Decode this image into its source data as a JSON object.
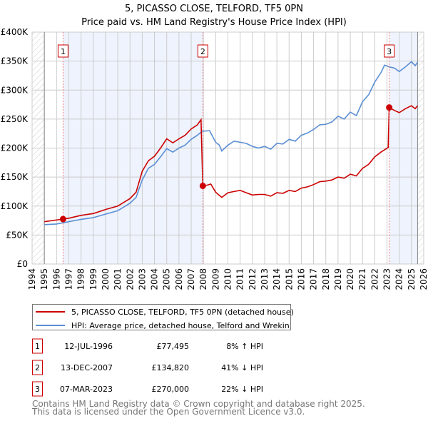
{
  "chart_data": {
    "type": "line",
    "title": "5, PICASSO CLOSE, TELFORD, TF5 0PN",
    "subtitle": "Price paid vs. HM Land Registry's House Price Index (HPI)",
    "xlim": [
      1994,
      2026
    ],
    "ylim": [
      0,
      400000
    ],
    "y_ticks": [
      {
        "v": 0,
        "label": "£0"
      },
      {
        "v": 50000,
        "label": "£50K"
      },
      {
        "v": 100000,
        "label": "£100K"
      },
      {
        "v": 150000,
        "label": "£150K"
      },
      {
        "v": 200000,
        "label": "£200K"
      },
      {
        "v": 250000,
        "label": "£250K"
      },
      {
        "v": 300000,
        "label": "£300K"
      },
      {
        "v": 350000,
        "label": "£350K"
      },
      {
        "v": 400000,
        "label": "£400K"
      }
    ],
    "x_ticks": [
      "1994",
      "1995",
      "1996",
      "1997",
      "1998",
      "1999",
      "2000",
      "2001",
      "2002",
      "2003",
      "2004",
      "2005",
      "2006",
      "2007",
      "2008",
      "2009",
      "2010",
      "2011",
      "2012",
      "2013",
      "2014",
      "2015",
      "2016",
      "2017",
      "2018",
      "2019",
      "2020",
      "2021",
      "2022",
      "2023",
      "2024",
      "2025",
      "2026"
    ],
    "grid": true,
    "data_range": [
      1995,
      2025.5
    ],
    "series": [
      {
        "name": "5, PICASSO CLOSE, TELFORD, TF5 0PN (detached house)",
        "color": "#cc0000",
        "x": [
          1995,
          1996.53,
          1997,
          1998,
          1999,
          2000,
          2001,
          2002,
          2002.5,
          2003,
          2003.5,
          2004,
          2004.5,
          2005,
          2005.5,
          2006,
          2006.5,
          2007,
          2007.5,
          2007.8,
          2007.95,
          2008.3,
          2008.6,
          2009,
          2009.5,
          2010,
          2010.5,
          2011,
          2011.5,
          2012,
          2012.5,
          2013,
          2013.5,
          2014,
          2014.5,
          2015,
          2015.5,
          2016,
          2016.5,
          2017,
          2017.5,
          2018,
          2018.5,
          2019,
          2019.5,
          2020,
          2020.5,
          2021,
          2021.5,
          2022,
          2022.5,
          2023.1,
          2023.18,
          2023.6,
          2024,
          2024.5,
          2025,
          2025.3,
          2025.5
        ],
        "y": [
          73000,
          77495,
          79000,
          84000,
          87000,
          94000,
          100000,
          113000,
          124000,
          160000,
          178000,
          186000,
          200000,
          216000,
          209000,
          216000,
          222000,
          233000,
          240000,
          249000,
          134820,
          136000,
          138000,
          124000,
          115000,
          123000,
          125000,
          127000,
          123000,
          119000,
          120000,
          120000,
          117000,
          123000,
          122000,
          127000,
          125000,
          131000,
          133000,
          137000,
          142000,
          143000,
          145000,
          150000,
          148000,
          155000,
          152000,
          165000,
          172000,
          185000,
          193000,
          201000,
          270000,
          265000,
          261000,
          268000,
          273000,
          268000,
          273000
        ]
      },
      {
        "name": "HPI: Average price, detached house, Telford and Wrekin",
        "color": "#5b8fd4",
        "x": [
          1995,
          1996,
          1996.5,
          1997,
          1998,
          1999,
          2000,
          2001,
          2002,
          2002.5,
          2003,
          2003.5,
          2004,
          2004.5,
          2005,
          2005.5,
          2006,
          2006.5,
          2007,
          2007.5,
          2007.9,
          2008.5,
          2009,
          2009.3,
          2009.5,
          2010,
          2010.5,
          2011,
          2011.5,
          2012,
          2012.5,
          2013,
          2013.5,
          2014,
          2014.5,
          2015,
          2015.5,
          2016,
          2016.5,
          2017,
          2017.5,
          2018,
          2018.5,
          2019,
          2019.5,
          2020,
          2020.5,
          2021,
          2021.5,
          2022,
          2022.5,
          2022.8,
          2023.2,
          2023.6,
          2024,
          2024.5,
          2025,
          2025.3,
          2025.5
        ],
        "y": [
          68000,
          69000,
          71000,
          73000,
          77000,
          80000,
          86000,
          92000,
          105000,
          115000,
          145000,
          165000,
          172000,
          185000,
          199000,
          193000,
          200000,
          205000,
          215000,
          222000,
          229000,
          230000,
          210000,
          205000,
          195000,
          205000,
          212000,
          210000,
          208000,
          203000,
          200000,
          203000,
          198000,
          208000,
          207000,
          215000,
          212000,
          222000,
          226000,
          232000,
          240000,
          241000,
          245000,
          255000,
          250000,
          262000,
          256000,
          280000,
          292000,
          314000,
          330000,
          343000,
          340000,
          338000,
          332000,
          340000,
          349000,
          342000,
          348000
        ]
      }
    ],
    "sales": [
      {
        "id": "1",
        "x": 1996.53,
        "y": 77495,
        "date": "12-JUL-1996",
        "price": "£77,495",
        "hpi": "8% ↑ HPI"
      },
      {
        "id": "2",
        "x": 2007.95,
        "y": 134820,
        "date": "13-DEC-2007",
        "price": "£134,820",
        "hpi": "41% ↓ HPI"
      },
      {
        "id": "3",
        "x": 2023.18,
        "y": 270000,
        "date": "07-MAR-2023",
        "price": "£270,000",
        "hpi": "22% ↓ HPI"
      }
    ]
  },
  "footer": {
    "line1": "Contains HM Land Registry data © Crown copyright and database right 2025.",
    "line2": "This data is licensed under the Open Government Licence v3.0."
  }
}
